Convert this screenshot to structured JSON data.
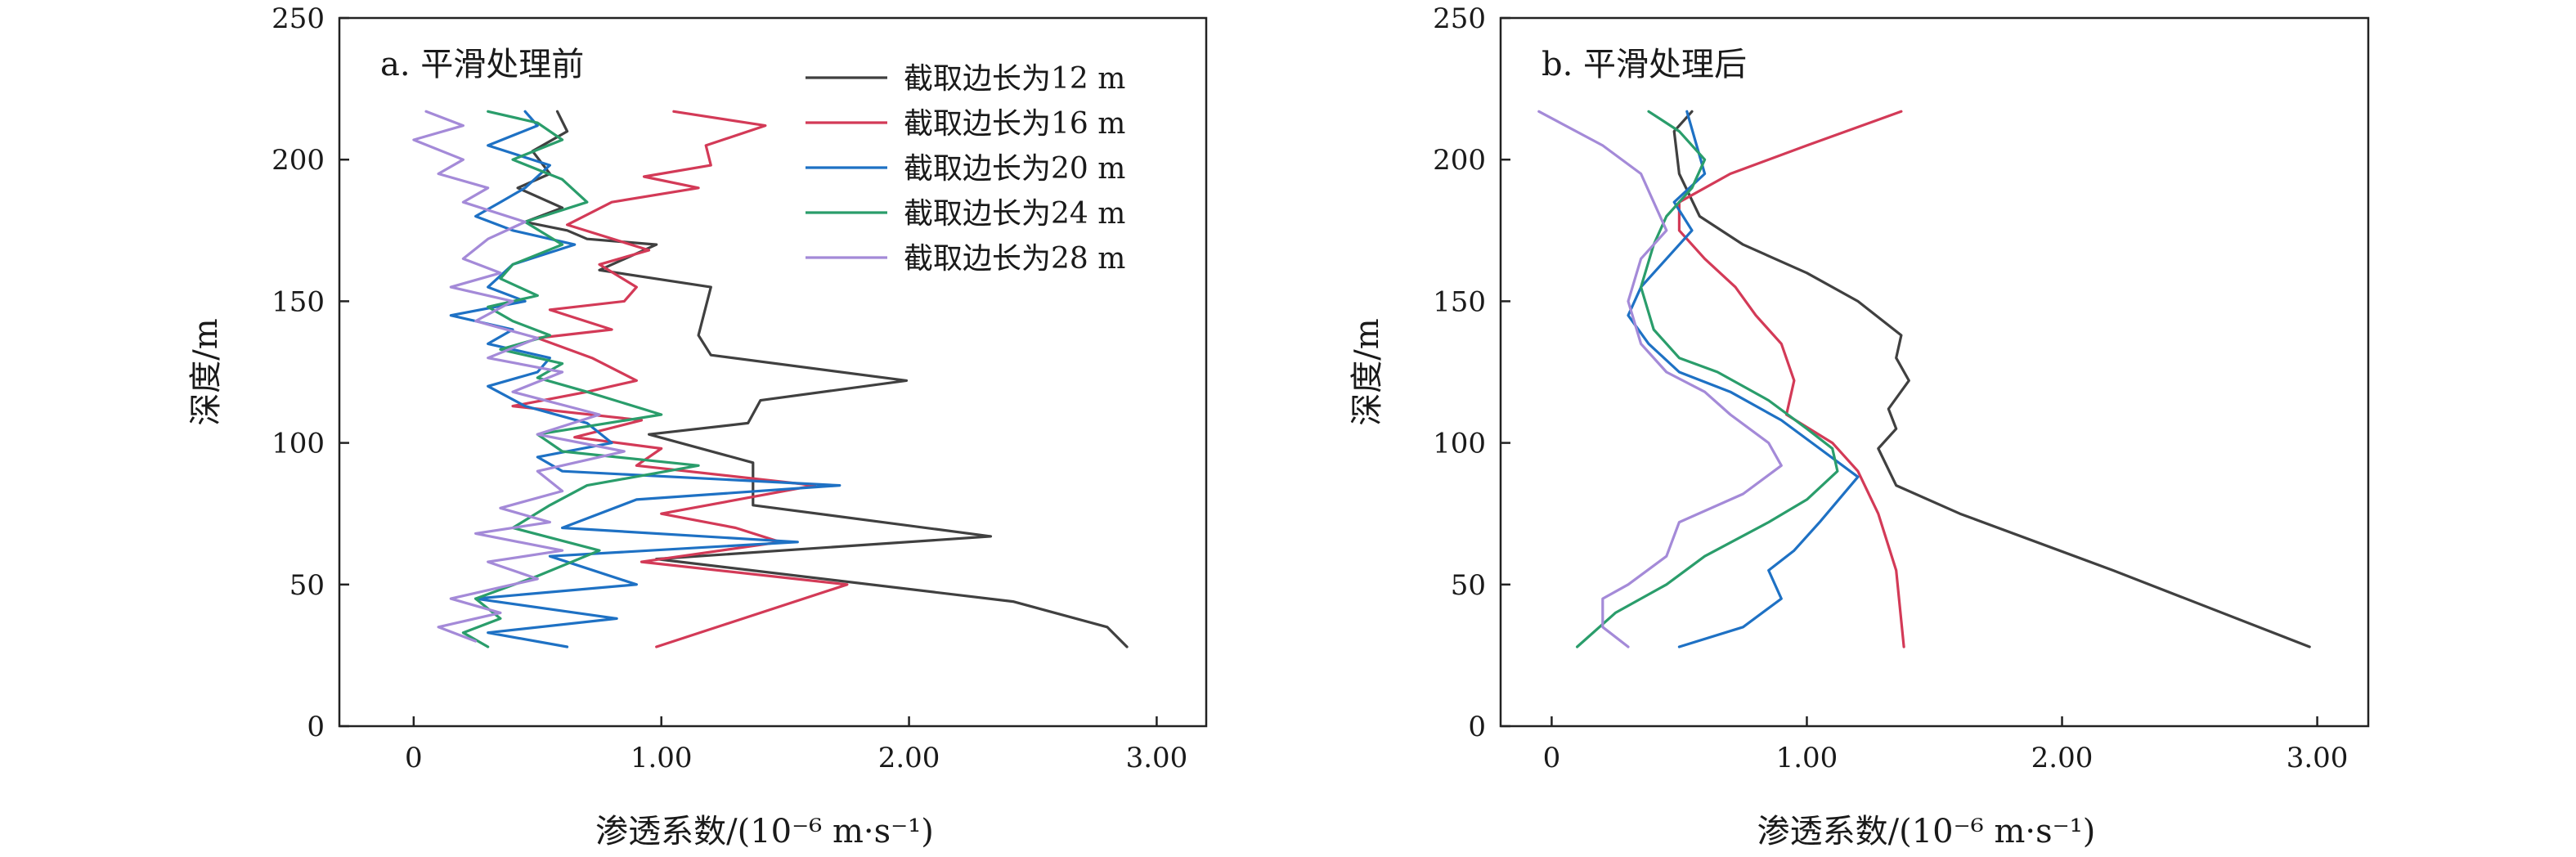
{
  "chart_data": [
    {
      "type": "line",
      "panel_label": "a. 平滑处理前",
      "xlabel": "渗透系数/(10⁻⁶ m·s⁻¹)",
      "ylabel": "深度/m",
      "xlim": [
        -0.3,
        3.2
      ],
      "ylim": [
        0,
        250
      ],
      "xticks": [
        0,
        1,
        2,
        3
      ],
      "xtick_labels": [
        "0",
        "1.00",
        "2.00",
        "3.00"
      ],
      "yticks": [
        0,
        50,
        100,
        150,
        200,
        250
      ],
      "ytick_labels": [
        "0",
        "50",
        "100",
        "150",
        "200",
        "250"
      ],
      "grid": false,
      "legend_position": "top-right",
      "series": [
        {
          "name": "截取边长为12 m",
          "color": "#404040",
          "x": [
            0.58,
            0.62,
            0.48,
            0.55,
            0.42,
            0.6,
            0.45,
            0.62,
            0.7,
            0.98,
            0.75,
            1.2,
            1.15,
            1.2,
            1.99,
            1.4,
            1.35,
            0.95,
            1.37,
            1.37,
            2.33,
            0.98,
            2.42,
            2.8,
            2.88
          ],
          "y": [
            217,
            210,
            203,
            195,
            190,
            183,
            178,
            175,
            172,
            170,
            161,
            155,
            138,
            131,
            122,
            115,
            107,
            103,
            93,
            78,
            67,
            59,
            44,
            35,
            28
          ]
        },
        {
          "name": "截取边长为16 m",
          "color": "#d33a57",
          "x": [
            1.05,
            1.42,
            1.18,
            1.2,
            0.93,
            1.15,
            0.8,
            0.62,
            0.95,
            0.75,
            0.9,
            0.85,
            0.55,
            0.8,
            0.5,
            0.72,
            0.9,
            0.7,
            0.4,
            0.92,
            0.65,
            1.0,
            0.9,
            1.62,
            1.0,
            1.3,
            1.48,
            0.92,
            1.75,
            0.98
          ],
          "y": [
            217,
            212,
            205,
            198,
            194,
            190,
            185,
            177,
            168,
            163,
            155,
            150,
            147,
            140,
            137,
            130,
            122,
            118,
            113,
            108,
            102,
            98,
            92,
            85,
            75,
            70,
            65,
            58,
            50,
            28
          ]
        },
        {
          "name": "截取边长为20 m",
          "color": "#1e71c4",
          "x": [
            0.45,
            0.5,
            0.3,
            0.55,
            0.45,
            0.35,
            0.25,
            0.4,
            0.65,
            0.4,
            0.3,
            0.45,
            0.15,
            0.4,
            0.3,
            0.55,
            0.5,
            0.3,
            0.45,
            0.7,
            0.8,
            0.5,
            0.6,
            1.72,
            0.9,
            0.6,
            1.55,
            0.55,
            0.9,
            0.25,
            0.82,
            0.3,
            0.62
          ],
          "y": [
            217,
            212,
            205,
            198,
            190,
            185,
            180,
            175,
            170,
            163,
            155,
            150,
            145,
            140,
            135,
            130,
            125,
            120,
            113,
            107,
            100,
            95,
            90,
            85,
            80,
            70,
            65,
            60,
            50,
            45,
            38,
            33,
            28
          ]
        },
        {
          "name": "截取边长为24 m",
          "color": "#2a9d6b",
          "x": [
            0.3,
            0.5,
            0.6,
            0.4,
            0.6,
            0.7,
            0.45,
            0.6,
            0.4,
            0.35,
            0.5,
            0.3,
            0.4,
            0.55,
            0.35,
            0.6,
            0.5,
            0.7,
            1.0,
            0.5,
            0.6,
            1.15,
            0.7,
            0.55,
            0.4,
            0.75,
            0.5,
            0.25,
            0.35,
            0.2,
            0.3
          ],
          "y": [
            217,
            213,
            207,
            200,
            193,
            185,
            178,
            170,
            163,
            158,
            152,
            148,
            143,
            138,
            133,
            128,
            123,
            118,
            110,
            103,
            97,
            92,
            85,
            78,
            70,
            62,
            53,
            45,
            38,
            33,
            28
          ]
        },
        {
          "name": "截取边长为28 m",
          "color": "#a48ad8",
          "x": [
            0.05,
            0.2,
            0.0,
            0.2,
            0.1,
            0.3,
            0.2,
            0.45,
            0.3,
            0.2,
            0.35,
            0.15,
            0.4,
            0.25,
            0.5,
            0.3,
            0.6,
            0.4,
            0.75,
            0.5,
            0.85,
            0.5,
            0.6,
            0.35,
            0.55,
            0.25,
            0.6,
            0.3,
            0.5,
            0.15,
            0.35,
            0.1,
            0.25
          ],
          "y": [
            217,
            212,
            207,
            200,
            195,
            190,
            185,
            178,
            172,
            165,
            160,
            155,
            150,
            143,
            137,
            130,
            125,
            118,
            110,
            103,
            97,
            90,
            83,
            77,
            72,
            68,
            62,
            58,
            52,
            45,
            40,
            35,
            30
          ]
        }
      ]
    },
    {
      "type": "line",
      "panel_label": "b. 平滑处理后",
      "xlabel": "渗透系数/(10⁻⁶ m·s⁻¹)",
      "ylabel": "深度/m",
      "xlim": [
        -0.2,
        3.2
      ],
      "ylim": [
        0,
        250
      ],
      "xticks": [
        0,
        1,
        2,
        3
      ],
      "xtick_labels": [
        "0",
        "1.00",
        "2.00",
        "3.00"
      ],
      "yticks": [
        0,
        50,
        100,
        150,
        200,
        250
      ],
      "ytick_labels": [
        "0",
        "50",
        "100",
        "150",
        "200",
        "250"
      ],
      "grid": false,
      "series": [
        {
          "name": "截取边长为12 m",
          "color": "#404040",
          "x": [
            0.55,
            0.48,
            0.5,
            0.58,
            0.75,
            1.0,
            1.2,
            1.37,
            1.35,
            1.4,
            1.32,
            1.35,
            1.28,
            1.35,
            1.6,
            2.2,
            2.97
          ],
          "y": [
            217,
            210,
            195,
            180,
            170,
            160,
            150,
            138,
            130,
            122,
            112,
            105,
            98,
            85,
            75,
            55,
            28
          ]
        },
        {
          "name": "截取边长为16 m",
          "color": "#d33a57",
          "x": [
            1.37,
            1.0,
            0.7,
            0.5,
            0.5,
            0.6,
            0.72,
            0.8,
            0.9,
            0.95,
            0.92,
            1.1,
            1.2,
            1.28,
            1.35,
            1.38
          ],
          "y": [
            217,
            205,
            195,
            185,
            175,
            165,
            155,
            145,
            135,
            122,
            110,
            100,
            90,
            75,
            55,
            28
          ]
        },
        {
          "name": "截取边长为20 m",
          "color": "#1e71c4",
          "x": [
            0.53,
            0.6,
            0.48,
            0.55,
            0.45,
            0.35,
            0.3,
            0.38,
            0.5,
            0.7,
            0.9,
            1.05,
            1.2,
            1.05,
            0.95,
            0.85,
            0.9,
            0.75,
            0.5
          ],
          "y": [
            217,
            195,
            185,
            175,
            165,
            155,
            145,
            135,
            125,
            118,
            108,
            98,
            88,
            72,
            62,
            55,
            45,
            35,
            28
          ]
        },
        {
          "name": "截取边长为24 m",
          "color": "#2a9d6b",
          "x": [
            0.38,
            0.5,
            0.6,
            0.55,
            0.45,
            0.4,
            0.35,
            0.4,
            0.5,
            0.65,
            0.85,
            1.0,
            1.1,
            1.12,
            1.0,
            0.85,
            0.6,
            0.45,
            0.25,
            0.1
          ],
          "y": [
            217,
            210,
            200,
            190,
            180,
            170,
            155,
            140,
            130,
            125,
            115,
            105,
            98,
            90,
            80,
            72,
            60,
            50,
            40,
            28
          ]
        },
        {
          "name": "截取边长为28 m",
          "color": "#a48ad8",
          "x": [
            -0.05,
            0.2,
            0.35,
            0.4,
            0.45,
            0.35,
            0.3,
            0.35,
            0.45,
            0.6,
            0.7,
            0.85,
            0.9,
            0.75,
            0.5,
            0.45,
            0.3,
            0.2,
            0.2,
            0.3
          ],
          "y": [
            217,
            205,
            195,
            185,
            175,
            165,
            150,
            135,
            125,
            118,
            110,
            100,
            92,
            82,
            72,
            60,
            50,
            45,
            35,
            28
          ]
        }
      ]
    }
  ]
}
